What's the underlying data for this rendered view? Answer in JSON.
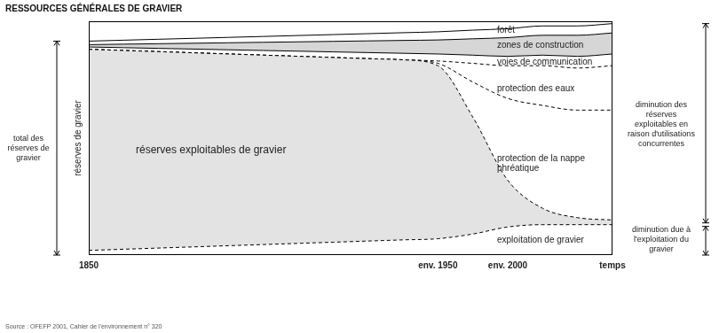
{
  "chart_data": {
    "type": "area",
    "title": "RESSOURCES GÉNÉRALES DE GRAVIER",
    "y_label": "réserves de gravier",
    "source": "Source : OFEFP 2001, Cahier de l'environnement n° 320",
    "annotations": [
      "total des réserves de gravier",
      "diminution des réserves exploitables en raison d'utilisations concurrentes",
      "diminution due à l'exploitation du gravier"
    ],
    "categories": [
      "1850",
      null,
      null,
      null,
      null,
      null,
      null,
      null,
      null,
      null,
      "env. 1950",
      null,
      "env. 2000",
      null,
      null,
      "temps"
    ],
    "stacked": true,
    "grid": false,
    "tick_labels": "x",
    "ylim": [
      0,
      100
    ],
    "series": [
      {
        "name": "exploitation de gravier",
        "color": "#ffffff",
        "line_style": "dashed",
        "values": [
          2,
          2.5,
          3,
          3.5,
          4,
          4.5,
          5,
          5.5,
          6,
          6.5,
          7,
          9,
          12,
          13,
          13,
          13
        ]
      },
      {
        "name": "réserves exploitables de gravier",
        "color": "#e3e3e3",
        "line_style": "dashed",
        "values": [
          86,
          85,
          84,
          83,
          82,
          81,
          80,
          79,
          78,
          77,
          74,
          50,
          20,
          7,
          3,
          2
        ]
      },
      {
        "name": "protection de la nappe phréatique",
        "color": "#ffffff",
        "line_style": "dashed",
        "values": [
          0,
          0,
          0,
          0,
          0,
          0,
          0,
          0,
          0,
          0,
          1,
          15,
          35,
          44,
          46,
          47
        ]
      },
      {
        "name": "protection des eaux",
        "color": "#ffffff",
        "line_style": "dashed",
        "values": [
          0,
          0,
          0,
          0,
          0,
          0,
          0,
          0,
          0,
          0,
          1,
          8,
          14,
          17,
          18,
          19
        ]
      },
      {
        "name": "voies de communication",
        "color": "#ffffff",
        "line_style": "solid",
        "values": [
          1,
          1.2,
          1.4,
          1.6,
          1.8,
          2,
          2.2,
          2.4,
          2.6,
          2.8,
          3,
          3.5,
          4,
          4.5,
          5,
          5
        ]
      },
      {
        "name": "zones de construction",
        "color": "#d6d6d6",
        "line_style": "solid",
        "values": [
          1,
          1.5,
          2,
          2.5,
          3,
          3.5,
          4,
          4.5,
          5,
          5.5,
          6,
          7,
          8,
          8.5,
          9,
          9
        ]
      },
      {
        "name": "forêt",
        "color": "#ffffff",
        "line_style": "solid",
        "values": [
          1.5,
          1.7,
          1.9,
          2.1,
          2.3,
          2.5,
          2.7,
          2.9,
          3.1,
          3.3,
          3.5,
          3.7,
          3.8,
          4,
          4,
          4
        ]
      }
    ]
  }
}
